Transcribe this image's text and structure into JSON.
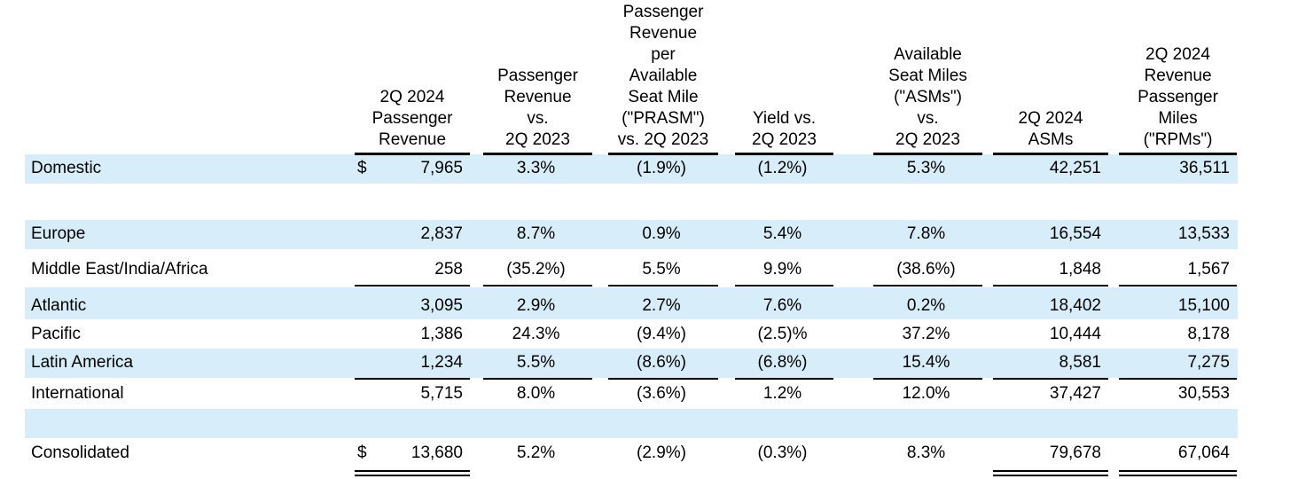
{
  "header": {
    "columns": [
      [
        "2Q 2024",
        "Passenger",
        "Revenue"
      ],
      [
        "Passenger",
        "Revenue",
        "vs.",
        "2Q 2023"
      ],
      [
        "Passenger",
        "Revenue",
        "per",
        "Available",
        "Seat Mile",
        "(\"PRASM\")",
        "vs. 2Q 2023"
      ],
      [
        "Yield vs.",
        "2Q 2023"
      ],
      [
        "Available",
        "Seat Miles",
        "(\"ASMs\")",
        "vs.",
        "2Q 2023"
      ],
      [
        "2Q 2024",
        "ASMs"
      ],
      [
        "2Q 2024",
        "Revenue",
        "Passenger",
        "Miles",
        "(\"RPMs\")"
      ]
    ]
  },
  "rows": [
    {
      "label": "Domestic",
      "currency": "$",
      "cells": [
        "7,965",
        "3.3%",
        "(1.9%)",
        "(1.2%)",
        "5.3%",
        "42,251",
        "36,511"
      ]
    },
    {
      "label": "Europe",
      "cells": [
        "2,837",
        "8.7%",
        "0.9%",
        "5.4%",
        "7.8%",
        "16,554",
        "13,533"
      ]
    },
    {
      "label": "Middle East/India/Africa",
      "cells": [
        "258",
        "(35.2%)",
        "5.5%",
        "9.9%",
        "(38.6%)",
        "1,848",
        "1,567"
      ]
    },
    {
      "label": "Atlantic",
      "cells": [
        "3,095",
        "2.9%",
        "2.7%",
        "7.6%",
        "0.2%",
        "18,402",
        "15,100"
      ]
    },
    {
      "label": "Pacific",
      "cells": [
        "1,386",
        "24.3%",
        "(9.4%)",
        "(2.5)%",
        "37.2%",
        "10,444",
        "8,178"
      ]
    },
    {
      "label": "Latin America",
      "cells": [
        "1,234",
        "5.5%",
        "(8.6%)",
        "(6.8%)",
        "15.4%",
        "8,581",
        "7,275"
      ]
    },
    {
      "label": "International",
      "cells": [
        "5,715",
        "8.0%",
        "(3.6%)",
        "1.2%",
        "12.0%",
        "37,427",
        "30,553"
      ]
    },
    {
      "label": "Consolidated",
      "currency": "$",
      "cells": [
        "13,680",
        "5.2%",
        "(2.9%)",
        "(0.3%)",
        "8.3%",
        "79,678",
        "67,064"
      ]
    }
  ]
}
